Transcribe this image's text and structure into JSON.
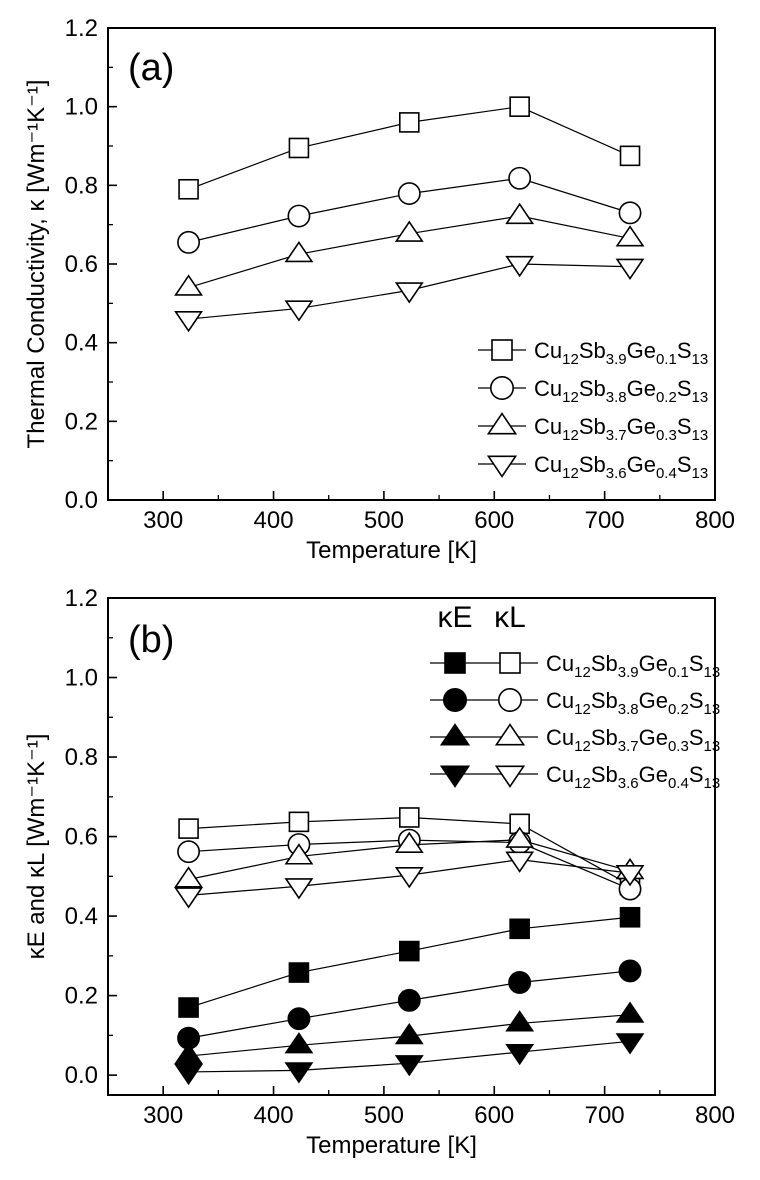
{
  "chart_data": [
    {
      "type": "line",
      "panel_label": "(a)",
      "xlabel": "Temperature [K]",
      "ylabel": "Thermal Conductivity, κ [Wm⁻¹K⁻¹]",
      "xlim": [
        250,
        800
      ],
      "ylim": [
        0.0,
        1.2
      ],
      "xticks": [
        300,
        400,
        500,
        600,
        700,
        800
      ],
      "xtick_labels": [
        "300",
        "400",
        "500",
        "600",
        "700",
        "800"
      ],
      "yticks": [
        0.0,
        0.2,
        0.4,
        0.6,
        0.8,
        1.0,
        1.2
      ],
      "ytick_labels": [
        "0.0",
        "0.2",
        "0.4",
        "0.6",
        "0.8",
        "1.0",
        "1.2"
      ],
      "legend_placement": "lower-right",
      "x": [
        323,
        423,
        523,
        623,
        723
      ],
      "series": [
        {
          "name": "Cu12Sb3.9Ge0.1S13",
          "marker": "square",
          "filled": false,
          "values": [
            0.79,
            0.895,
            0.96,
            1.0,
            0.875
          ]
        },
        {
          "name": "Cu12Sb3.8Ge0.2S13",
          "marker": "circle",
          "filled": false,
          "values": [
            0.655,
            0.722,
            0.779,
            0.818,
            0.73
          ]
        },
        {
          "name": "Cu12Sb3.7Ge0.3S13",
          "marker": "triangle-up",
          "filled": false,
          "values": [
            0.54,
            0.625,
            0.677,
            0.722,
            0.665
          ]
        },
        {
          "name": "Cu12Sb3.6Ge0.4S13",
          "marker": "triangle-down",
          "filled": false,
          "values": [
            0.46,
            0.487,
            0.533,
            0.6,
            0.593
          ]
        }
      ],
      "legend": [
        {
          "base": "Cu",
          "parts": [
            [
              "12",
              "sub"
            ],
            [
              "Sb",
              ""
            ],
            [
              "3.9",
              "sub"
            ],
            [
              "Ge",
              ""
            ],
            [
              "0.1",
              "sub"
            ],
            [
              "S",
              ""
            ],
            [
              "13",
              "sub"
            ]
          ]
        },
        {
          "base": "Cu",
          "parts": [
            [
              "12",
              "sub"
            ],
            [
              "Sb",
              ""
            ],
            [
              "3.8",
              "sub"
            ],
            [
              "Ge",
              ""
            ],
            [
              "0.2",
              "sub"
            ],
            [
              "S",
              ""
            ],
            [
              "13",
              "sub"
            ]
          ]
        },
        {
          "base": "Cu",
          "parts": [
            [
              "12",
              "sub"
            ],
            [
              "Sb",
              ""
            ],
            [
              "3.7",
              "sub"
            ],
            [
              "Ge",
              ""
            ],
            [
              "0.3",
              "sub"
            ],
            [
              "S",
              ""
            ],
            [
              "13",
              "sub"
            ]
          ]
        },
        {
          "base": "Cu",
          "parts": [
            [
              "12",
              "sub"
            ],
            [
              "Sb",
              ""
            ],
            [
              "3.6",
              "sub"
            ],
            [
              "Ge",
              ""
            ],
            [
              "0.4",
              "sub"
            ],
            [
              "S",
              ""
            ],
            [
              "13",
              "sub"
            ]
          ]
        }
      ]
    },
    {
      "type": "line",
      "panel_label": "(b)",
      "xlabel": "Temperature [K]",
      "ylabel": "κE and κL [Wm⁻¹K⁻¹]",
      "xlim": [
        250,
        800
      ],
      "ylim": [
        -0.05,
        1.2
      ],
      "xticks": [
        300,
        400,
        500,
        600,
        700,
        800
      ],
      "xtick_labels": [
        "300",
        "400",
        "500",
        "600",
        "700",
        "800"
      ],
      "yticks": [
        0.0,
        0.2,
        0.4,
        0.6,
        0.8,
        1.0,
        1.2
      ],
      "ytick_labels": [
        "0.0",
        "0.2",
        "0.4",
        "0.6",
        "0.8",
        "1.0",
        "1.2"
      ],
      "legend_placement": "upper-right",
      "legend_headers": [
        "κE",
        "κL"
      ],
      "x": [
        323,
        423,
        523,
        623,
        723
      ],
      "series": [
        {
          "name": "κE Cu12Sb3.9Ge0.1S13",
          "marker": "square",
          "filled": true,
          "values": [
            0.17,
            0.258,
            0.312,
            0.368,
            0.397
          ]
        },
        {
          "name": "κE Cu12Sb3.8Ge0.2S13",
          "marker": "circle",
          "filled": true,
          "values": [
            0.093,
            0.142,
            0.188,
            0.233,
            0.262
          ]
        },
        {
          "name": "κE Cu12Sb3.7Ge0.3S13",
          "marker": "triangle-up",
          "filled": true,
          "values": [
            0.048,
            0.075,
            0.098,
            0.13,
            0.152
          ]
        },
        {
          "name": "κE Cu12Sb3.6Ge0.4S13",
          "marker": "triangle-down",
          "filled": true,
          "values": [
            0.008,
            0.012,
            0.03,
            0.058,
            0.085
          ]
        },
        {
          "name": "κL Cu12Sb3.9Ge0.1S13",
          "marker": "square",
          "filled": false,
          "values": [
            0.62,
            0.637,
            0.648,
            0.632,
            0.478
          ]
        },
        {
          "name": "κL Cu12Sb3.8Ge0.2S13",
          "marker": "circle",
          "filled": false,
          "values": [
            0.562,
            0.58,
            0.591,
            0.585,
            0.468
          ]
        },
        {
          "name": "κL Cu12Sb3.7Ge0.3S13",
          "marker": "triangle-up",
          "filled": false,
          "values": [
            0.492,
            0.55,
            0.579,
            0.592,
            0.513
          ]
        },
        {
          "name": "κL Cu12Sb3.6Ge0.4S13",
          "marker": "triangle-down",
          "filled": false,
          "values": [
            0.452,
            0.475,
            0.503,
            0.542,
            0.508
          ]
        }
      ],
      "legend": [
        {
          "base": "Cu",
          "parts": [
            [
              "12",
              "sub"
            ],
            [
              "Sb",
              ""
            ],
            [
              "3.9",
              "sub"
            ],
            [
              "Ge",
              ""
            ],
            [
              "0.1",
              "sub"
            ],
            [
              "S",
              ""
            ],
            [
              "13",
              "sub"
            ]
          ]
        },
        {
          "base": "Cu",
          "parts": [
            [
              "12",
              "sub"
            ],
            [
              "Sb",
              ""
            ],
            [
              "3.8",
              "sub"
            ],
            [
              "Ge",
              ""
            ],
            [
              "0.2",
              "sub"
            ],
            [
              "S",
              ""
            ],
            [
              "13",
              "sub"
            ]
          ]
        },
        {
          "base": "Cu",
          "parts": [
            [
              "12",
              "sub"
            ],
            [
              "Sb",
              ""
            ],
            [
              "3.7",
              "sub"
            ],
            [
              "Ge",
              ""
            ],
            [
              "0.3",
              "sub"
            ],
            [
              "S",
              ""
            ],
            [
              "13",
              "sub"
            ]
          ]
        },
        {
          "base": "Cu",
          "parts": [
            [
              "12",
              "sub"
            ],
            [
              "Sb",
              ""
            ],
            [
              "3.6",
              "sub"
            ],
            [
              "Ge",
              ""
            ],
            [
              "0.4",
              "sub"
            ],
            [
              "S",
              ""
            ],
            [
              "13",
              "sub"
            ]
          ]
        }
      ]
    }
  ]
}
